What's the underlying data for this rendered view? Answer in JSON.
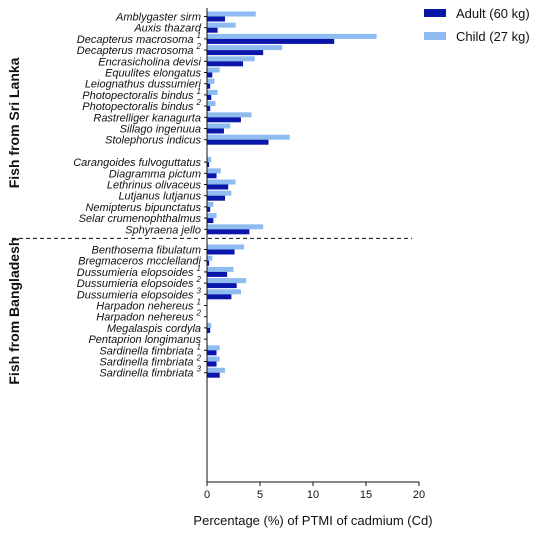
{
  "chart_data": {
    "type": "bar",
    "orientation": "horizontal",
    "xlabel": "Percentage (%) of PTMI of cadmium (Cd)",
    "xlim": [
      0,
      20
    ],
    "xticks": [
      "0",
      "5",
      "10",
      "15",
      "20"
    ],
    "legend_position": "top-right",
    "series": [
      {
        "name": "Adult (60 kg)",
        "color": "#0a16a8"
      },
      {
        "name": "Child (27 kg)",
        "color": "#8ebbf0"
      }
    ],
    "groups": [
      {
        "label": "Fish from Sri Lanka",
        "items": [
          {
            "name": "Amblygaster sirm",
            "sup": "",
            "adult": 1.7,
            "child": 4.6
          },
          {
            "name": "Auxis thazard",
            "sup": "",
            "adult": 1.0,
            "child": 2.7
          },
          {
            "name": "Decapterus macrosoma",
            "sup": "1",
            "adult": 12.0,
            "child": 16.0
          },
          {
            "name": "Decapterus macrosoma",
            "sup": "2",
            "adult": 5.3,
            "child": 7.1
          },
          {
            "name": "Encrasicholina devisi",
            "sup": "",
            "adult": 3.4,
            "child": 4.5
          },
          {
            "name": "Equulites elongatus",
            "sup": "",
            "adult": 0.5,
            "child": 1.2
          },
          {
            "name": "Leiognathus dussumieri",
            "sup": "",
            "adult": 0.3,
            "child": 0.7
          },
          {
            "name": "Photopectoralis bindus",
            "sup": "1",
            "adult": 0.4,
            "child": 1.0
          },
          {
            "name": "Photopectoralis bindus",
            "sup": "2",
            "adult": 0.3,
            "child": 0.8
          },
          {
            "name": "Rastrelliger kanagurta",
            "sup": "",
            "adult": 3.2,
            "child": 4.2
          },
          {
            "name": "Sillago ingenuua",
            "sup": "",
            "adult": 1.6,
            "child": 2.2
          },
          {
            "name": "Stolephorus indicus",
            "sup": "",
            "adult": 5.8,
            "child": 7.8
          },
          {
            "name": "",
            "sup": "",
            "adult": 0,
            "child": 0
          },
          {
            "name": "Carangoides fulvoguttatus",
            "sup": "",
            "adult": 0.2,
            "child": 0.4
          },
          {
            "name": "Diagramma pictum",
            "sup": "",
            "adult": 0.9,
            "child": 1.3
          },
          {
            "name": "Lethrinus olivaceus",
            "sup": "",
            "adult": 2.0,
            "child": 2.7
          },
          {
            "name": "Lutjanus lutjanus",
            "sup": "",
            "adult": 1.7,
            "child": 2.3
          },
          {
            "name": "Nemipterus bipunctatus",
            "sup": "",
            "adult": 0.3,
            "child": 0.6
          },
          {
            "name": "Selar crumenophthalmus",
            "sup": "",
            "adult": 0.6,
            "child": 0.9
          },
          {
            "name": "Sphyraena jello",
            "sup": "",
            "adult": 4.0,
            "child": 5.3
          }
        ]
      },
      {
        "label": "Fish from Bangladesh",
        "items": [
          {
            "name": "Benthosema fibulatum",
            "sup": "",
            "adult": 2.6,
            "child": 3.5
          },
          {
            "name": "Bregmaceros mcclellandi",
            "sup": "",
            "adult": 0.2,
            "child": 0.5
          },
          {
            "name": "Dussumieria elopsoides",
            "sup": "1",
            "adult": 1.9,
            "child": 2.5
          },
          {
            "name": "Dussumieria elopsoides",
            "sup": "2",
            "adult": 2.8,
            "child": 3.7
          },
          {
            "name": "Dussumieria elopsoides",
            "sup": "3",
            "adult": 2.3,
            "child": 3.2
          },
          {
            "name": "Harpadon nehereus",
            "sup": "1",
            "adult": 0,
            "child": 0
          },
          {
            "name": "Harpadon nehereus",
            "sup": "2",
            "adult": 0,
            "child": 0
          },
          {
            "name": "Megalaspis cordyla",
            "sup": "",
            "adult": 0.3,
            "child": 0.4
          },
          {
            "name": "Pentaprion longimanus",
            "sup": "",
            "adult": 0,
            "child": 0
          },
          {
            "name": "Sardinella fimbriata",
            "sup": "1",
            "adult": 0.9,
            "child": 1.2
          },
          {
            "name": "Sardinella fimbriata",
            "sup": "2",
            "adult": 0.9,
            "child": 1.2
          },
          {
            "name": "Sardinella fimbriata",
            "sup": "3",
            "adult": 1.2,
            "child": 1.7
          }
        ]
      }
    ]
  }
}
